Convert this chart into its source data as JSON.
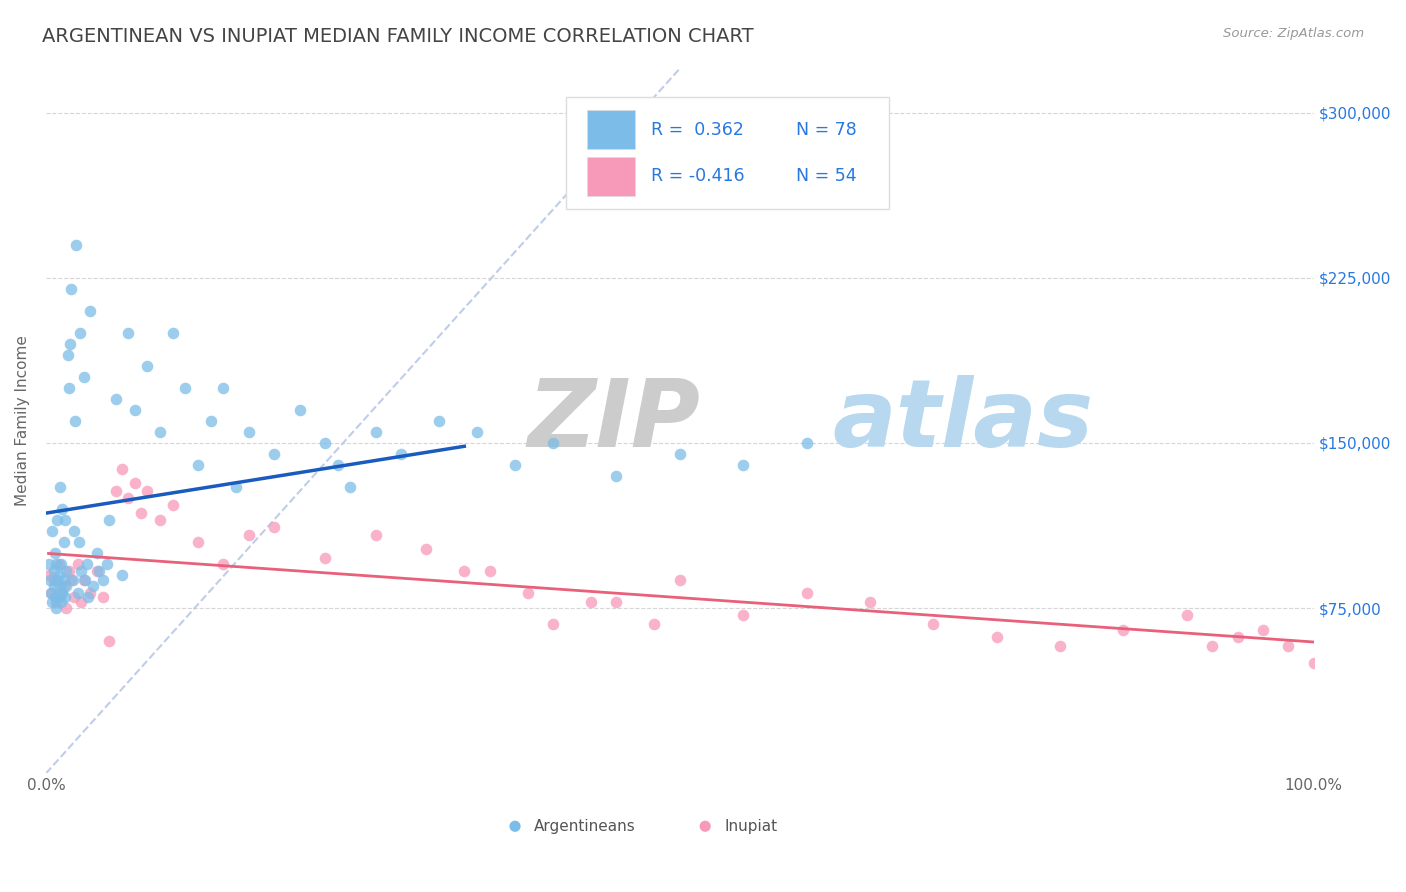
{
  "title": "ARGENTINEAN VS INUPIAT MEDIAN FAMILY INCOME CORRELATION CHART",
  "source_text": "Source: ZipAtlas.com",
  "ylabel": "Median Family Income",
  "xlim": [
    0,
    1.0
  ],
  "ylim": [
    0,
    320000
  ],
  "xticks": [
    0.0,
    1.0
  ],
  "xticklabels": [
    "0.0%",
    "100.0%"
  ],
  "yticks": [
    75000,
    150000,
    225000,
    300000
  ],
  "yticklabels": [
    "$75,000",
    "$150,000",
    "$225,000",
    "$300,000"
  ],
  "background_color": "#ffffff",
  "grid_color": "#cccccc",
  "title_color": "#444444",
  "title_fontsize": 14,
  "argentinean_color": "#7bbde8",
  "inupiat_color": "#f799b8",
  "argentinean_edge": "#5590cc",
  "inupiat_edge": "#e06090",
  "regression_line1_color": "#1a5bbf",
  "regression_line2_color": "#e8607a",
  "ref_line_color": "#b8c8e8",
  "blue_text_color": "#2878e0",
  "argentinean_x": [
    0.002,
    0.003,
    0.004,
    0.005,
    0.005,
    0.006,
    0.006,
    0.007,
    0.007,
    0.008,
    0.008,
    0.009,
    0.009,
    0.01,
    0.01,
    0.011,
    0.011,
    0.012,
    0.012,
    0.013,
    0.013,
    0.014,
    0.014,
    0.015,
    0.015,
    0.016,
    0.016,
    0.017,
    0.018,
    0.019,
    0.02,
    0.021,
    0.022,
    0.023,
    0.024,
    0.025,
    0.026,
    0.027,
    0.028,
    0.03,
    0.031,
    0.032,
    0.033,
    0.035,
    0.037,
    0.04,
    0.042,
    0.045,
    0.048,
    0.05,
    0.055,
    0.06,
    0.065,
    0.07,
    0.08,
    0.09,
    0.1,
    0.11,
    0.12,
    0.13,
    0.14,
    0.15,
    0.16,
    0.18,
    0.2,
    0.22,
    0.23,
    0.24,
    0.26,
    0.28,
    0.31,
    0.34,
    0.37,
    0.4,
    0.45,
    0.5,
    0.55,
    0.6
  ],
  "argentinean_y": [
    95000,
    88000,
    82000,
    110000,
    78000,
    92000,
    85000,
    100000,
    80000,
    95000,
    75000,
    88000,
    115000,
    80000,
    90000,
    85000,
    130000,
    78000,
    95000,
    82000,
    120000,
    88000,
    105000,
    80000,
    115000,
    92000,
    85000,
    190000,
    175000,
    195000,
    220000,
    88000,
    110000,
    160000,
    240000,
    82000,
    105000,
    200000,
    92000,
    180000,
    88000,
    95000,
    80000,
    210000,
    85000,
    100000,
    92000,
    88000,
    95000,
    115000,
    170000,
    90000,
    200000,
    165000,
    185000,
    155000,
    200000,
    175000,
    140000,
    160000,
    175000,
    130000,
    155000,
    145000,
    165000,
    150000,
    140000,
    130000,
    155000,
    145000,
    160000,
    155000,
    140000,
    150000,
    135000,
    145000,
    140000,
    150000
  ],
  "inupiat_x": [
    0.002,
    0.004,
    0.006,
    0.008,
    0.01,
    0.012,
    0.014,
    0.016,
    0.018,
    0.02,
    0.022,
    0.025,
    0.028,
    0.03,
    0.035,
    0.04,
    0.045,
    0.05,
    0.055,
    0.06,
    0.065,
    0.07,
    0.075,
    0.08,
    0.09,
    0.1,
    0.12,
    0.14,
    0.16,
    0.18,
    0.22,
    0.26,
    0.3,
    0.35,
    0.4,
    0.45,
    0.5,
    0.55,
    0.6,
    0.65,
    0.7,
    0.75,
    0.8,
    0.85,
    0.9,
    0.92,
    0.94,
    0.96,
    0.98,
    1.0,
    0.33,
    0.38,
    0.43,
    0.48
  ],
  "inupiat_y": [
    90000,
    82000,
    88000,
    78000,
    95000,
    82000,
    85000,
    75000,
    92000,
    88000,
    80000,
    95000,
    78000,
    88000,
    82000,
    92000,
    80000,
    60000,
    128000,
    138000,
    125000,
    132000,
    118000,
    128000,
    115000,
    122000,
    105000,
    95000,
    108000,
    112000,
    98000,
    108000,
    102000,
    92000,
    68000,
    78000,
    88000,
    72000,
    82000,
    78000,
    68000,
    62000,
    58000,
    65000,
    72000,
    58000,
    62000,
    65000,
    58000,
    50000,
    92000,
    82000,
    78000,
    68000
  ]
}
